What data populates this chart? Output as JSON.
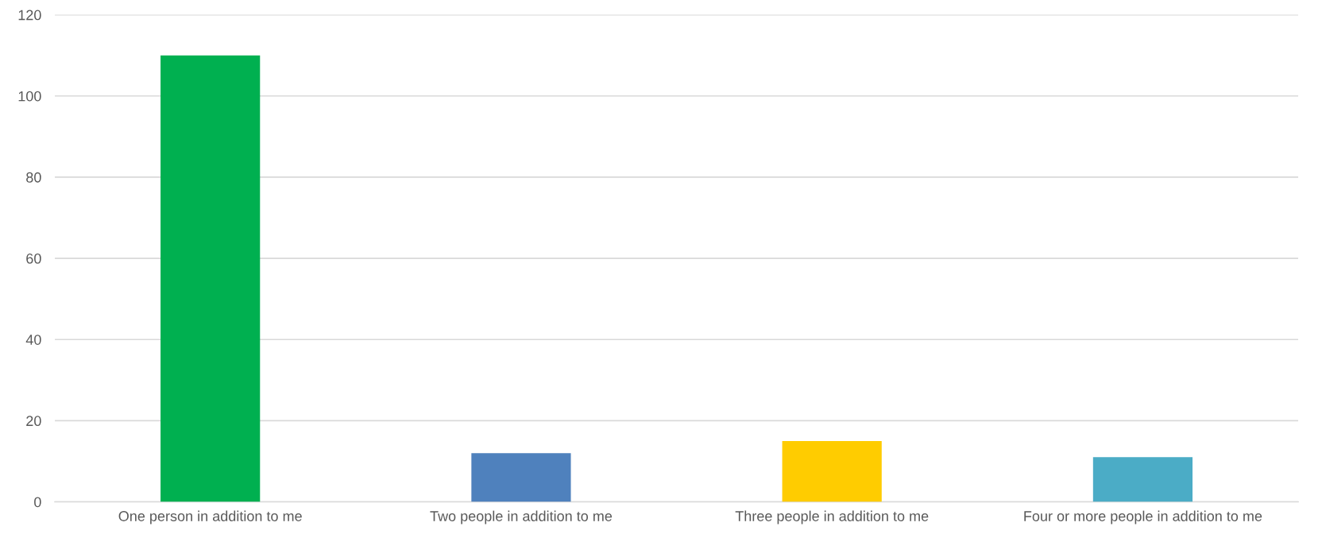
{
  "chart_data": {
    "type": "bar",
    "categories": [
      "One person in addition to me",
      "Two people in addition to me",
      "Three people in addition to me",
      "Four or more people in addition to me"
    ],
    "values": [
      110,
      12,
      15,
      11
    ],
    "colors": [
      "#00b050",
      "#4f81bd",
      "#ffcc00",
      "#4bacc6"
    ],
    "ylim": [
      0,
      120
    ],
    "yticks": [
      0,
      20,
      40,
      60,
      80,
      100,
      120
    ],
    "grid": "y",
    "legend": false
  }
}
